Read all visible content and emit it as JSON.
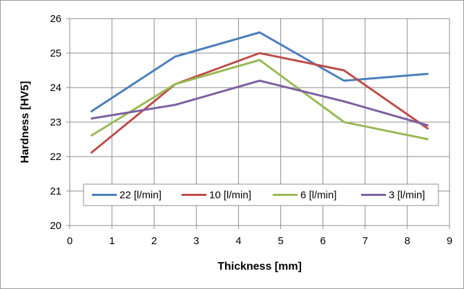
{
  "chart_data": {
    "type": "line",
    "xlabel": "Thickness [mm]",
    "ylabel": "Hardness [HV5]",
    "xlim": [
      0,
      9
    ],
    "ylim": [
      20,
      26
    ],
    "x_ticks": [
      "0",
      "1",
      "2",
      "3",
      "4",
      "5",
      "6",
      "7",
      "8",
      "9"
    ],
    "y_ticks": [
      "20",
      "21",
      "22",
      "23",
      "24",
      "25",
      "26"
    ],
    "grid": true,
    "legend_position": "lower-center",
    "x": [
      0.5,
      2.5,
      4.5,
      6.5,
      8.5
    ],
    "series": [
      {
        "name": "22 [l/min]",
        "color": "#4a7ebb",
        "values": [
          23.3,
          24.9,
          25.6,
          24.2,
          24.4
        ]
      },
      {
        "name": "10 [l/min]",
        "color": "#be4b48",
        "values": [
          22.1,
          24.1,
          25.0,
          24.5,
          22.8
        ]
      },
      {
        "name": "6 [l/min]",
        "color": "#98b954",
        "values": [
          22.6,
          24.1,
          24.8,
          23.0,
          22.5
        ]
      },
      {
        "name": "3 [l/min]",
        "color": "#7d60a0",
        "values": [
          23.1,
          23.5,
          24.2,
          23.6,
          22.9
        ]
      }
    ]
  }
}
